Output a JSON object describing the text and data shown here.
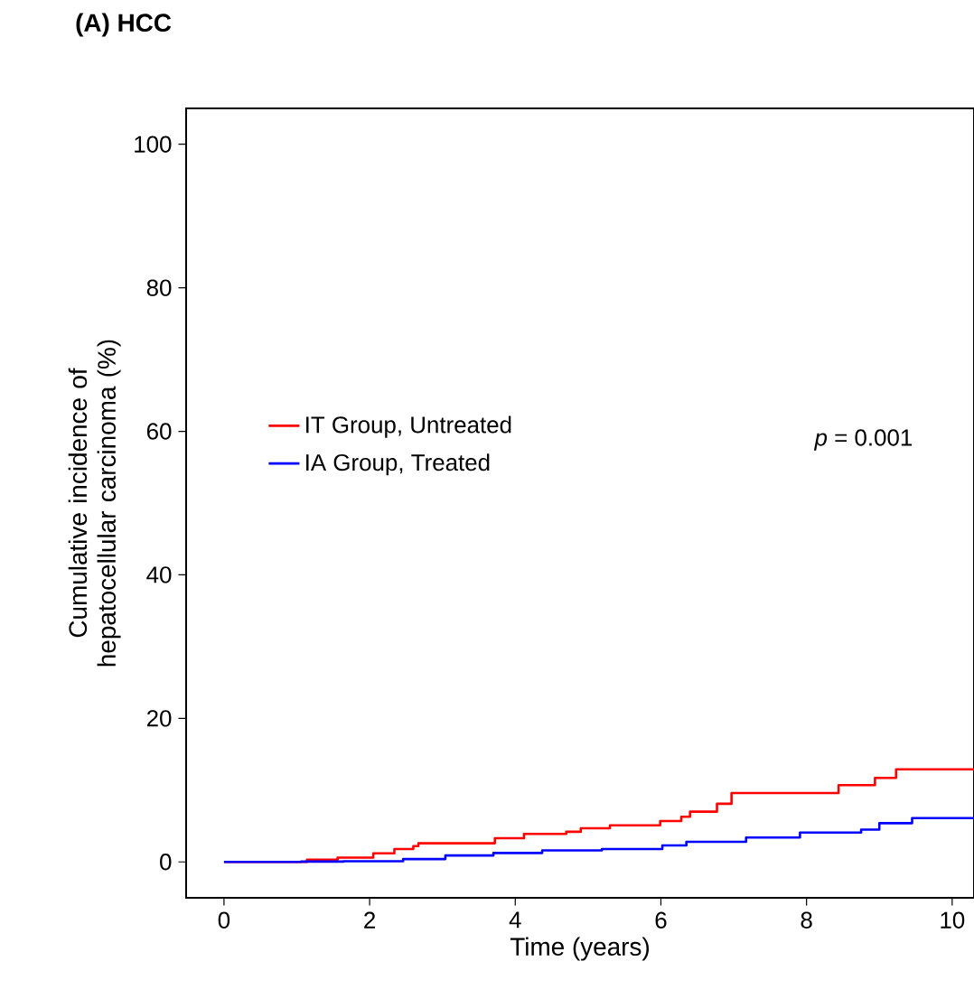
{
  "chart_data": {
    "type": "step",
    "title": "(A) HCC",
    "xlabel": "Time (years)",
    "ylabel": "Cumulative incidence of hepatocellular carcinoma (%)",
    "xlim": [
      -0.52,
      10.3
    ],
    "ylim": [
      -5,
      105
    ],
    "xticks": [
      0,
      2,
      4,
      6,
      8,
      10
    ],
    "yticks": [
      0,
      20,
      40,
      60,
      80,
      100
    ],
    "grid": false,
    "legend": "left",
    "annotations": [
      "*p* = 0.001"
    ],
    "series": [
      {
        "name": "IT Group, Untreated",
        "color": "#ff0000",
        "x": [
          0,
          1.14,
          1.56,
          2.05,
          2.34,
          2.6,
          2.67,
          3.72,
          4.12,
          4.7,
          4.9,
          5.3,
          5.99,
          6.28,
          6.4,
          6.77,
          6.97,
          8.44,
          8.94,
          9.23,
          10.3
        ],
        "values": [
          0,
          0.3,
          0.6,
          1.2,
          1.8,
          2.2,
          2.6,
          3.3,
          3.9,
          4.2,
          4.7,
          5.1,
          5.7,
          6.3,
          7.0,
          8.1,
          9.6,
          10.7,
          11.7,
          12.9,
          12.9
        ]
      },
      {
        "name": "IA Group, Treated",
        "color": "#0000ff",
        "x": [
          0,
          1.06,
          1.64,
          2.46,
          3.04,
          3.7,
          4.37,
          5.19,
          6.02,
          6.35,
          7.17,
          7.91,
          8.75,
          9.0,
          9.45,
          10.3
        ],
        "values": [
          0,
          0.05,
          0.1,
          0.4,
          0.9,
          1.25,
          1.6,
          1.8,
          2.3,
          2.8,
          3.4,
          4.1,
          4.5,
          5.4,
          6.1,
          6.1
        ]
      }
    ]
  }
}
